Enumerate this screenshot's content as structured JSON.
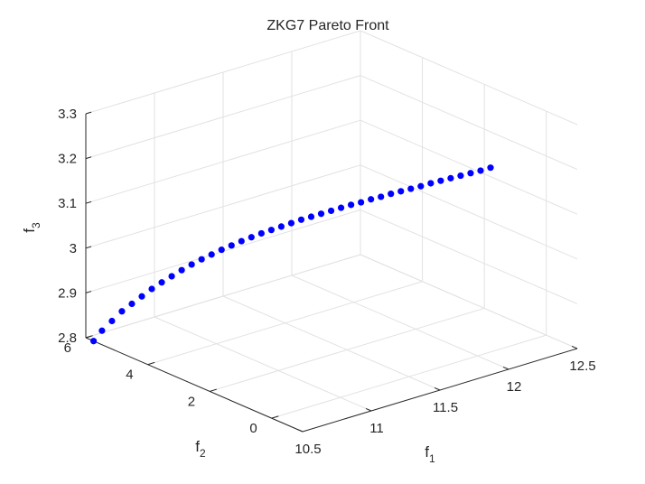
{
  "chart_data": {
    "type": "scatter",
    "title": "ZKG7 Pareto Front",
    "xlabel": {
      "base": "f",
      "sub": "1"
    },
    "ylabel": {
      "base": "f",
      "sub": "2"
    },
    "zlabel": {
      "base": "f",
      "sub": "3"
    },
    "xlim": [
      10.5,
      12.5
    ],
    "ylim": [
      -1,
      6
    ],
    "zlim": [
      2.8,
      3.3
    ],
    "xticks": [
      "10.5",
      "11",
      "11.5",
      "12",
      "12.5"
    ],
    "yticks": [
      "0",
      "2",
      "4",
      "6"
    ],
    "zticks": [
      "2.8",
      "2.9",
      "3",
      "3.1",
      "3.2",
      "3.3"
    ],
    "grid": true,
    "marker_color": "#0000ff",
    "note": "",
    "points": [
      [
        10.5,
        5.75,
        2.8
      ],
      [
        10.55,
        5.7,
        2.82
      ],
      [
        10.6,
        5.6,
        2.84
      ],
      [
        10.65,
        5.5,
        2.86
      ],
      [
        10.7,
        5.4,
        2.875
      ],
      [
        10.75,
        5.3,
        2.89
      ],
      [
        10.8,
        5.2,
        2.905
      ],
      [
        10.85,
        5.1,
        2.918
      ],
      [
        10.9,
        5.0,
        2.93
      ],
      [
        10.95,
        4.9,
        2.942
      ],
      [
        11.0,
        4.8,
        2.953
      ],
      [
        11.05,
        4.7,
        2.963
      ],
      [
        11.1,
        4.6,
        2.972
      ],
      [
        11.15,
        4.5,
        2.981
      ],
      [
        11.2,
        4.4,
        2.989
      ],
      [
        11.25,
        4.3,
        2.997
      ],
      [
        11.3,
        4.2,
        3.004
      ],
      [
        11.35,
        4.1,
        3.011
      ],
      [
        11.4,
        4.0,
        3.017
      ],
      [
        11.45,
        3.9,
        3.023
      ],
      [
        11.5,
        3.8,
        3.029
      ],
      [
        11.55,
        3.7,
        3.035
      ],
      [
        11.6,
        3.6,
        3.04
      ],
      [
        11.65,
        3.5,
        3.045
      ],
      [
        11.7,
        3.4,
        3.05
      ],
      [
        11.75,
        3.3,
        3.055
      ],
      [
        11.8,
        3.2,
        3.06
      ],
      [
        11.85,
        3.1,
        3.064
      ],
      [
        11.9,
        3.0,
        3.069
      ],
      [
        11.95,
        2.9,
        3.073
      ],
      [
        12.0,
        2.8,
        3.078
      ],
      [
        12.05,
        2.7,
        3.082
      ],
      [
        12.1,
        2.6,
        3.086
      ],
      [
        12.15,
        2.5,
        3.09
      ],
      [
        12.2,
        2.4,
        3.095
      ],
      [
        12.25,
        2.3,
        3.099
      ],
      [
        12.3,
        2.2,
        3.103
      ],
      [
        12.35,
        2.1,
        3.107
      ],
      [
        12.4,
        2.0,
        3.111
      ],
      [
        12.45,
        1.9,
        3.115
      ],
      [
        12.5,
        1.8,
        3.12
      ]
    ]
  }
}
